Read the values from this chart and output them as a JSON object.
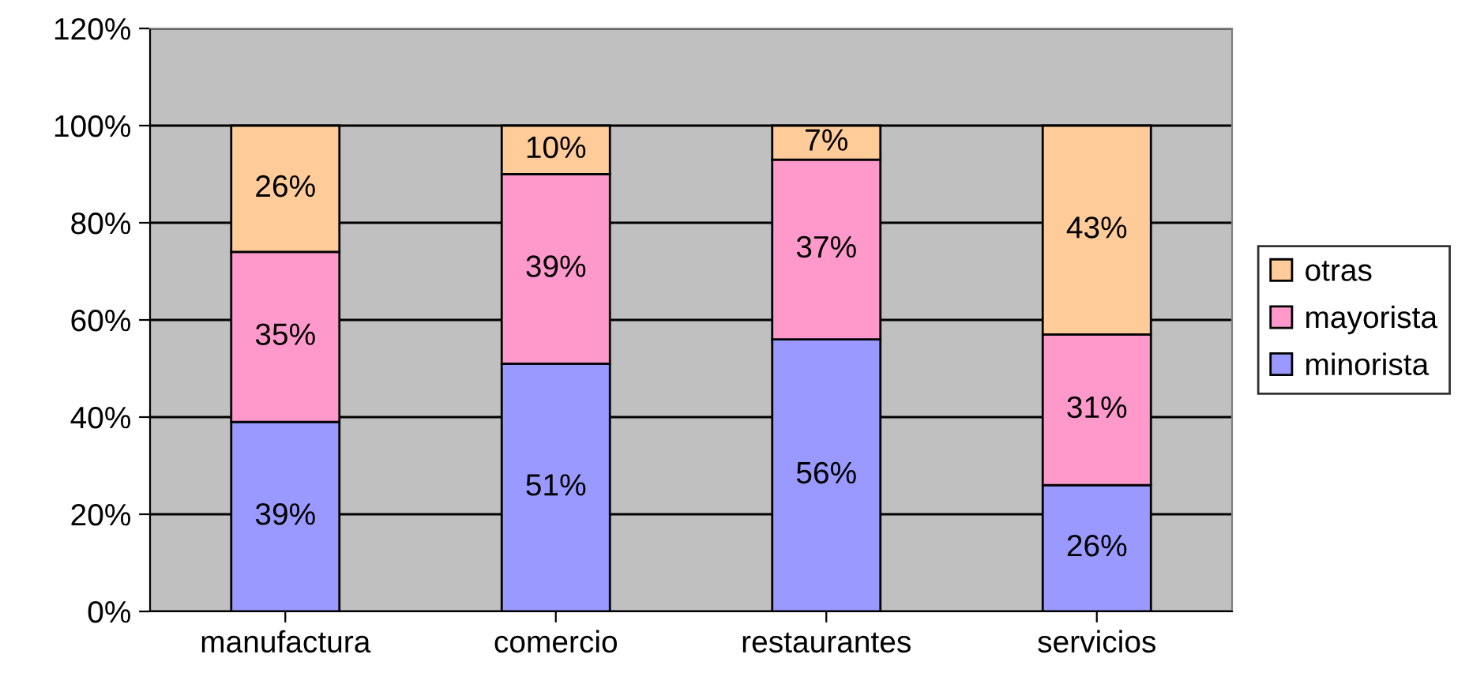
{
  "chart_data": {
    "type": "bar",
    "stacked": true,
    "categories": [
      "manufactura",
      "comercio",
      "restaurantes",
      "servicios"
    ],
    "series": [
      {
        "name": "minorista",
        "color": "#9999ff",
        "values": [
          39,
          51,
          56,
          26
        ],
        "value_labels": [
          "39%",
          "51%",
          "56%",
          "26%"
        ]
      },
      {
        "name": "mayorista",
        "color": "#ff99cc",
        "values": [
          35,
          39,
          37,
          31
        ],
        "value_labels": [
          "35%",
          "39%",
          "37%",
          "31%"
        ]
      },
      {
        "name": "otras",
        "color": "#ffcc99",
        "values": [
          26,
          10,
          7,
          43
        ],
        "value_labels": [
          "26%",
          "10%",
          "7%",
          "43%"
        ]
      }
    ],
    "ylim": [
      0,
      120
    ],
    "yticks": [
      {
        "value": 0,
        "label": "0%"
      },
      {
        "value": 20,
        "label": "20%"
      },
      {
        "value": 40,
        "label": "40%"
      },
      {
        "value": 60,
        "label": "60%"
      },
      {
        "value": 80,
        "label": "80%"
      },
      {
        "value": 100,
        "label": "100%"
      },
      {
        "value": 120,
        "label": "120%"
      }
    ],
    "grid": "y",
    "legend": "right"
  }
}
